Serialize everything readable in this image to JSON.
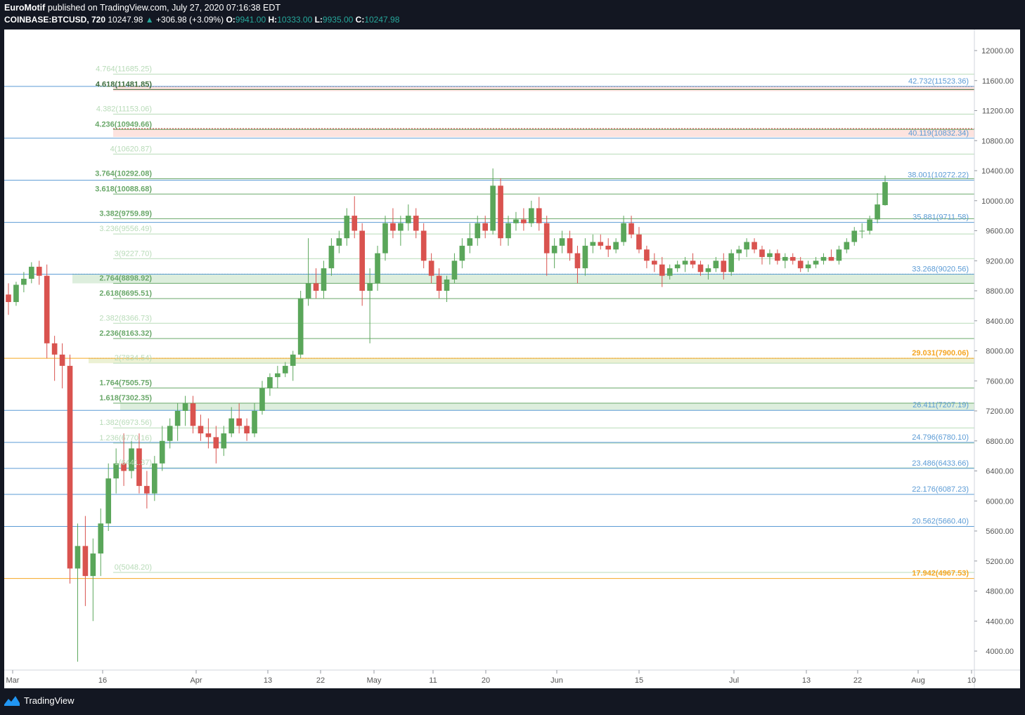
{
  "header": {
    "author": "EuroMotif",
    "published": "published on TradingView.com, July 27, 2020 07:16:38 EDT",
    "symbol": "COINBASE:BTCUSD, 720",
    "price": "10247.98",
    "change": "+306.98 (+3.09%)",
    "o_label": "O:",
    "o_value": "9941.00",
    "h_label": "H:",
    "h_value": "10333.00",
    "l_label": "L:",
    "l_value": "9935.00",
    "c_label": "C:",
    "c_value": "10247.98"
  },
  "footer": {
    "brand": "TradingView"
  },
  "colors": {
    "up": "#26a69a",
    "down": "#ef5350",
    "candle_up": "#5aa65a",
    "candle_down": "#d9534f",
    "blue": "#5b9bd5",
    "orange": "#f5a623"
  },
  "chart_data": {
    "type": "candlestick",
    "ylim": [
      3800,
      12400
    ],
    "y_ticks": [
      "12000.00",
      "11600.00",
      "11200.00",
      "10800.00",
      "10400.00",
      "10000.00",
      "9600.00",
      "9200.00",
      "8800.00",
      "8400.00",
      "8000.00",
      "7600.00",
      "7200.00",
      "6800.00",
      "6400.00",
      "6000.00",
      "5600.00",
      "5200.00",
      "4800.00",
      "4400.00",
      "4000.00"
    ],
    "x_ticks": [
      "Mar",
      "16",
      "Apr",
      "13",
      "22",
      "May",
      "11",
      "20",
      "Jun",
      "15",
      "Jul",
      "13",
      "22",
      "Aug",
      "10"
    ],
    "fib_levels": [
      {
        "label": "4.764",
        "value": "11685.25",
        "level": 11685.25,
        "style": "light"
      },
      {
        "label": "4.618",
        "value": "11481.85",
        "level": 11481.85,
        "style": "dark"
      },
      {
        "label": "4.382",
        "value": "11153.06",
        "level": 11153.06,
        "style": "light"
      },
      {
        "label": "4.236",
        "value": "10949.66",
        "level": 10949.66,
        "style": "bold"
      },
      {
        "label": "4",
        "value": "10620.87",
        "level": 10620.87,
        "style": "light"
      },
      {
        "label": "3.764",
        "value": "10292.08",
        "level": 10292.08,
        "style": "bold"
      },
      {
        "label": "3.618",
        "value": "10088.68",
        "level": 10088.68,
        "style": "bold"
      },
      {
        "label": "3.382",
        "value": "9759.89",
        "level": 9759.89,
        "style": "bold"
      },
      {
        "label": "3.236",
        "value": "9556.49",
        "level": 9556.49,
        "style": "light"
      },
      {
        "label": "3",
        "value": "9227.70",
        "level": 9227.7,
        "style": "light"
      },
      {
        "label": "2.764",
        "value": "8898.92",
        "level": 8898.92,
        "style": "bold"
      },
      {
        "label": "2.618",
        "value": "8695.51",
        "level": 8695.51,
        "style": "bold"
      },
      {
        "label": "2.382",
        "value": "8366.73",
        "level": 8366.73,
        "style": "light"
      },
      {
        "label": "2.236",
        "value": "8163.32",
        "level": 8163.32,
        "style": "bold"
      },
      {
        "label": "2",
        "value": "7834.54",
        "level": 7834.54,
        "style": "light"
      },
      {
        "label": "1.764",
        "value": "7505.75",
        "level": 7505.75,
        "style": "bold"
      },
      {
        "label": "1.618",
        "value": "7302.35",
        "level": 7302.35,
        "style": "bold"
      },
      {
        "label": "1.382",
        "value": "6973.56",
        "level": 6973.56,
        "style": "light"
      },
      {
        "label": "1.236",
        "value": "6770.16",
        "level": 6770.16,
        "style": "light"
      },
      {
        "label": "1",
        "value": "6441.37",
        "level": 6441.37,
        "style": "light"
      },
      {
        "label": "0",
        "value": "5048.20",
        "level": 5048.2,
        "style": "light"
      }
    ],
    "blue_levels": [
      {
        "label": "42.732",
        "value": "11523.36",
        "level": 11523.36,
        "color": "#5b9bd5"
      },
      {
        "label": "40.119",
        "value": "10832.34",
        "level": 10832.34,
        "color": "#5b9bd5"
      },
      {
        "label": "38.001",
        "value": "10272.22",
        "level": 10272.22,
        "color": "#5b9bd5"
      },
      {
        "label": "35.881",
        "value": "9711.58",
        "level": 9711.58,
        "color": "#5b9bd5"
      },
      {
        "label": "33.268",
        "value": "9020.56",
        "level": 9020.56,
        "color": "#5b9bd5"
      },
      {
        "label": "29.031",
        "value": "7900.06",
        "level": 7900.06,
        "color": "#f5a623"
      },
      {
        "label": "26.411",
        "value": "7207.19",
        "level": 7207.19,
        "color": "#5b9bd5"
      },
      {
        "label": "24.796",
        "value": "6780.10",
        "level": 6780.1,
        "color": "#5b9bd5"
      },
      {
        "label": "23.486",
        "value": "6433.66",
        "level": 6433.66,
        "color": "#5b9bd5"
      },
      {
        "label": "22.176",
        "value": "6087.23",
        "level": 6087.23,
        "color": "#5b9bd5"
      },
      {
        "label": "20.562",
        "value": "5660.40",
        "level": 5660.4,
        "color": "#5b9bd5"
      },
      {
        "label": "17.942",
        "value": "4967.53",
        "level": 4967.53,
        "color": "#f5a623"
      }
    ],
    "zones": [
      {
        "from": 11460,
        "to": 11520,
        "color": "red"
      },
      {
        "from": 10849,
        "to": 10960,
        "color": "red"
      },
      {
        "from": 8898.92,
        "to": 9020.56,
        "color": "green"
      },
      {
        "from": 7834.54,
        "to": 7900.06,
        "color": "olive"
      },
      {
        "from": 7207.19,
        "to": 7302.35,
        "color": "green"
      }
    ],
    "price_path": [
      [
        0,
        8750,
        8900,
        8480,
        8650
      ],
      [
        1,
        8650,
        8920,
        8600,
        8880
      ],
      [
        2,
        8880,
        9050,
        8780,
        8960
      ],
      [
        3,
        8960,
        9180,
        8900,
        9120
      ],
      [
        4,
        9120,
        9200,
        8880,
        9000
      ],
      [
        5,
        9000,
        9150,
        7900,
        8100
      ],
      [
        6,
        8100,
        8200,
        7600,
        7950
      ],
      [
        7,
        7950,
        8100,
        7500,
        7800
      ],
      [
        8,
        7800,
        7950,
        4900,
        5100
      ],
      [
        9,
        5100,
        5700,
        3858,
        5400
      ],
      [
        10,
        5400,
        5800,
        4600,
        5000
      ],
      [
        11,
        5000,
        5500,
        4400,
        5300
      ],
      [
        12,
        5300,
        5900,
        5000,
        5700
      ],
      [
        13,
        5700,
        6500,
        5600,
        6300
      ],
      [
        14,
        6300,
        6700,
        6100,
        6500
      ],
      [
        15,
        6500,
        6900,
        6200,
        6400
      ],
      [
        16,
        6400,
        6800,
        6300,
        6700
      ],
      [
        17,
        6700,
        6900,
        6100,
        6200
      ],
      [
        18,
        6200,
        6400,
        5900,
        6100
      ],
      [
        19,
        6100,
        6600,
        6000,
        6500
      ],
      [
        20,
        6500,
        7000,
        6400,
        6800
      ],
      [
        21,
        6800,
        7100,
        6700,
        7000
      ],
      [
        22,
        7000,
        7300,
        6800,
        7200
      ],
      [
        23,
        7200,
        7400,
        7000,
        7300
      ],
      [
        24,
        7300,
        7400,
        6900,
        7000
      ],
      [
        25,
        7000,
        7150,
        6800,
        6900
      ],
      [
        26,
        6900,
        7100,
        6700,
        6850
      ],
      [
        27,
        6850,
        7000,
        6500,
        6700
      ],
      [
        28,
        6700,
        7000,
        6600,
        6900
      ],
      [
        29,
        6900,
        7250,
        6850,
        7100
      ],
      [
        30,
        7100,
        7300,
        6900,
        7000
      ],
      [
        31,
        7000,
        7100,
        6800,
        6900
      ],
      [
        32,
        6900,
        7300,
        6850,
        7200
      ],
      [
        33,
        7200,
        7600,
        7150,
        7500
      ],
      [
        34,
        7500,
        7700,
        7400,
        7650
      ],
      [
        35,
        7650,
        7800,
        7500,
        7700
      ],
      [
        36,
        7700,
        7850,
        7650,
        7800
      ],
      [
        37,
        7800,
        8000,
        7600,
        7950
      ],
      [
        38,
        7950,
        8800,
        7900,
        8700
      ],
      [
        39,
        8700,
        9500,
        8600,
        8900
      ],
      [
        40,
        8900,
        9100,
        8700,
        8800
      ],
      [
        41,
        8800,
        9200,
        8700,
        9100
      ],
      [
        42,
        9100,
        9500,
        9000,
        9400
      ],
      [
        43,
        9400,
        9600,
        9300,
        9500
      ],
      [
        44,
        9500,
        9900,
        9400,
        9800
      ],
      [
        45,
        9800,
        10060,
        9500,
        9600
      ],
      [
        46,
        9600,
        9700,
        8600,
        8800
      ],
      [
        47,
        8800,
        9100,
        8100,
        8900
      ],
      [
        48,
        8900,
        9400,
        8800,
        9300
      ],
      [
        49,
        9300,
        9800,
        9200,
        9700
      ],
      [
        50,
        9700,
        9900,
        9500,
        9600
      ],
      [
        51,
        9600,
        9800,
        9400,
        9700
      ],
      [
        52,
        9700,
        9950,
        9600,
        9800
      ],
      [
        53,
        9800,
        9900,
        9500,
        9600
      ],
      [
        54,
        9600,
        9700,
        9100,
        9200
      ],
      [
        55,
        9200,
        9300,
        8900,
        9000
      ],
      [
        56,
        9000,
        9100,
        8700,
        8800
      ],
      [
        57,
        8800,
        9000,
        8650,
        8950
      ],
      [
        58,
        8950,
        9300,
        8900,
        9200
      ],
      [
        59,
        9200,
        9500,
        9100,
        9400
      ],
      [
        60,
        9400,
        9700,
        9300,
        9500
      ],
      [
        61,
        9500,
        9800,
        9400,
        9700
      ],
      [
        62,
        9700,
        9800,
        9500,
        9600
      ],
      [
        63,
        9600,
        10430,
        9550,
        10200
      ],
      [
        64,
        10200,
        10300,
        9400,
        9500
      ],
      [
        65,
        9500,
        9800,
        9400,
        9700
      ],
      [
        66,
        9700,
        9850,
        9600,
        9750
      ],
      [
        67,
        9750,
        9900,
        9600,
        9700
      ],
      [
        68,
        9700,
        10000,
        9650,
        9900
      ],
      [
        69,
        9900,
        10050,
        9600,
        9700
      ],
      [
        70,
        9700,
        9800,
        9000,
        9300
      ],
      [
        71,
        9300,
        9500,
        9100,
        9400
      ],
      [
        72,
        9400,
        9600,
        9300,
        9500
      ],
      [
        73,
        9500,
        9600,
        9200,
        9300
      ],
      [
        74,
        9300,
        9400,
        8900,
        9100
      ],
      [
        75,
        9100,
        9500,
        9000,
        9400
      ],
      [
        76,
        9400,
        9550,
        9300,
        9450
      ],
      [
        77,
        9450,
        9550,
        9350,
        9400
      ],
      [
        78,
        9400,
        9500,
        9250,
        9350
      ],
      [
        79,
        9350,
        9500,
        9300,
        9450
      ],
      [
        80,
        9450,
        9800,
        9400,
        9700
      ],
      [
        81,
        9700,
        9800,
        9500,
        9550
      ],
      [
        82,
        9550,
        9650,
        9300,
        9350
      ],
      [
        83,
        9350,
        9400,
        9100,
        9200
      ],
      [
        84,
        9200,
        9300,
        9050,
        9150
      ],
      [
        85,
        9150,
        9250,
        8850,
        9000
      ],
      [
        86,
        9000,
        9150,
        8950,
        9100
      ],
      [
        87,
        9100,
        9200,
        9050,
        9150
      ],
      [
        88,
        9150,
        9250,
        9050,
        9200
      ],
      [
        89,
        9200,
        9300,
        9100,
        9150
      ],
      [
        90,
        9150,
        9200,
        9000,
        9050
      ],
      [
        91,
        9050,
        9150,
        8950,
        9100
      ],
      [
        92,
        9100,
        9250,
        9050,
        9200
      ],
      [
        93,
        9200,
        9300,
        8950,
        9050
      ],
      [
        94,
        9050,
        9350,
        9000,
        9300
      ],
      [
        95,
        9300,
        9400,
        9200,
        9350
      ],
      [
        96,
        9350,
        9500,
        9250,
        9450
      ],
      [
        97,
        9450,
        9500,
        9300,
        9350
      ],
      [
        98,
        9350,
        9400,
        9150,
        9250
      ],
      [
        99,
        9250,
        9350,
        9150,
        9300
      ],
      [
        100,
        9300,
        9350,
        9150,
        9200
      ],
      [
        101,
        9200,
        9300,
        9100,
        9250
      ],
      [
        102,
        9250,
        9300,
        9150,
        9200
      ],
      [
        103,
        9200,
        9250,
        9050,
        9100
      ],
      [
        104,
        9100,
        9200,
        9050,
        9150
      ],
      [
        105,
        9150,
        9250,
        9100,
        9200
      ],
      [
        106,
        9200,
        9300,
        9150,
        9250
      ],
      [
        107,
        9250,
        9350,
        9200,
        9200
      ],
      [
        108,
        9200,
        9400,
        9150,
        9350
      ],
      [
        109,
        9350,
        9500,
        9300,
        9450
      ],
      [
        110,
        9450,
        9650,
        9400,
        9600
      ],
      [
        111,
        9600,
        9700,
        9500,
        9600
      ],
      [
        112,
        9600,
        9800,
        9550,
        9750
      ],
      [
        113,
        9750,
        10100,
        9700,
        9950
      ],
      [
        114,
        9941,
        10333,
        9935,
        10247.98
      ]
    ]
  }
}
